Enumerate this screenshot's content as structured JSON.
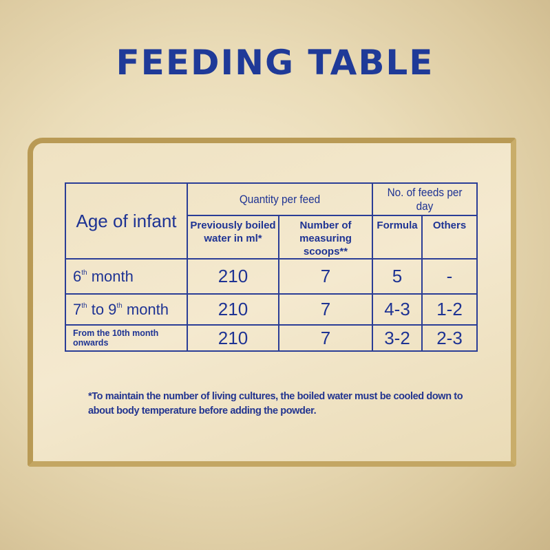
{
  "title": "FEEDING TABLE",
  "table": {
    "age_header": "Age of infant",
    "quantity_header": "Quantity per feed",
    "feeds_header": "No. of feeds per day",
    "water_header": "Previously boiled water in ml*",
    "scoops_header": "Number of measuring scoops**",
    "formula_header": "Formula",
    "others_header": "Others",
    "rows": [
      {
        "age_a": "6",
        "sup_a": "th",
        "age_b": " month",
        "age_c": "",
        "sup_c": "",
        "age_d": "",
        "water": "210",
        "scoops": "7",
        "formula": "5",
        "others": "-"
      },
      {
        "age_a": "7",
        "sup_a": "th",
        "age_b": " to 9",
        "sup_c": "th",
        "age_d": " month",
        "water": "210",
        "scoops": "7",
        "formula": "4-3",
        "others": "1-2"
      },
      {
        "age": "From the 10th month onwards",
        "water": "210",
        "scoops": "7",
        "formula": "3-2",
        "others": "2-3"
      }
    ]
  },
  "footnote": "*To maintain the number of living cultures, the boiled water must be cooled down to about body temperature before adding the powder.",
  "colors": {
    "text": "#1e3393",
    "frame": "#b99a55"
  }
}
